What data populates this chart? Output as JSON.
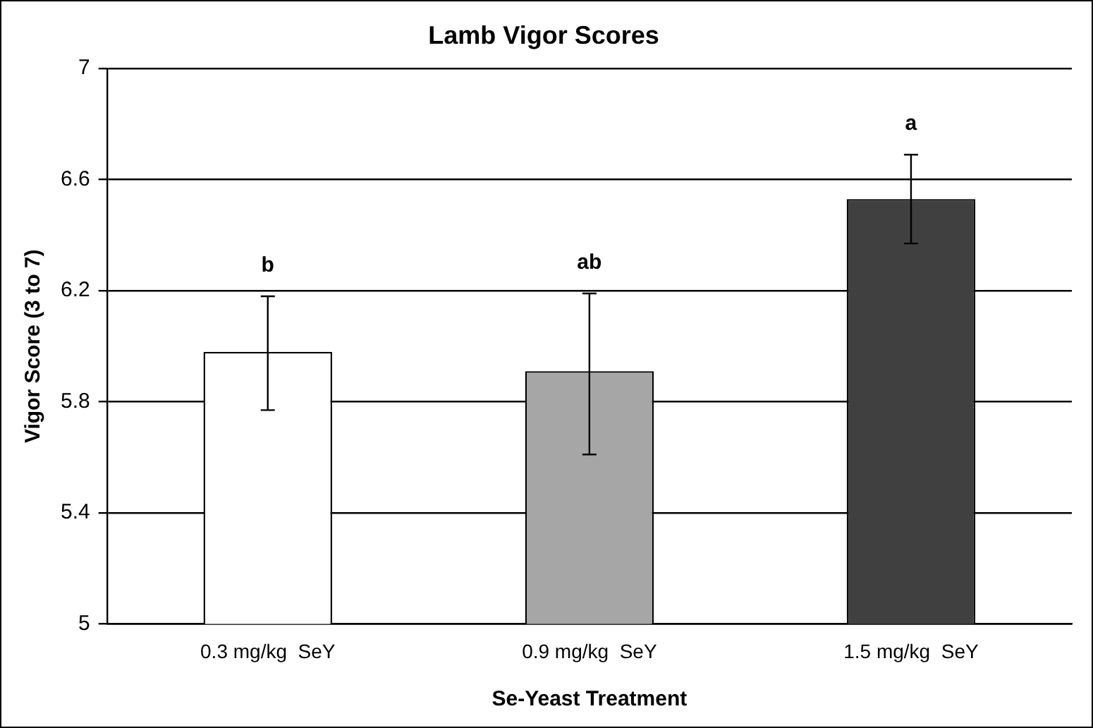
{
  "chart_data": {
    "type": "bar",
    "title": "Lamb Vigor Scores",
    "xlabel": "Se-Yeast Treatment",
    "ylabel": "Vigor Score (3 to 7)",
    "categories": [
      "0.3 mg/kg  SeY",
      "0.9 mg/kg  SeY",
      "1.5 mg/kg  SeY"
    ],
    "values": [
      5.98,
      5.91,
      6.53
    ],
    "colors": [
      "#ffffff",
      "#a6a6a6",
      "#404040"
    ],
    "errors": [
      [
        5.77,
        6.18
      ],
      [
        5.61,
        6.19
      ],
      [
        6.37,
        6.69
      ]
    ],
    "annotations": [
      {
        "text": "b",
        "x": "0.3 mg/kg  SeY",
        "y": 6.18
      },
      {
        "text": "ab",
        "x": "0.9 mg/kg  SeY",
        "y": 6.19
      },
      {
        "text": "a",
        "x": "1.5 mg/kg  SeY",
        "y": 6.69
      }
    ],
    "ylim": [
      5,
      7
    ],
    "yticks": [
      5,
      5.4,
      5.8,
      6.2,
      6.6,
      7
    ],
    "grid": "y",
    "legend": false
  }
}
